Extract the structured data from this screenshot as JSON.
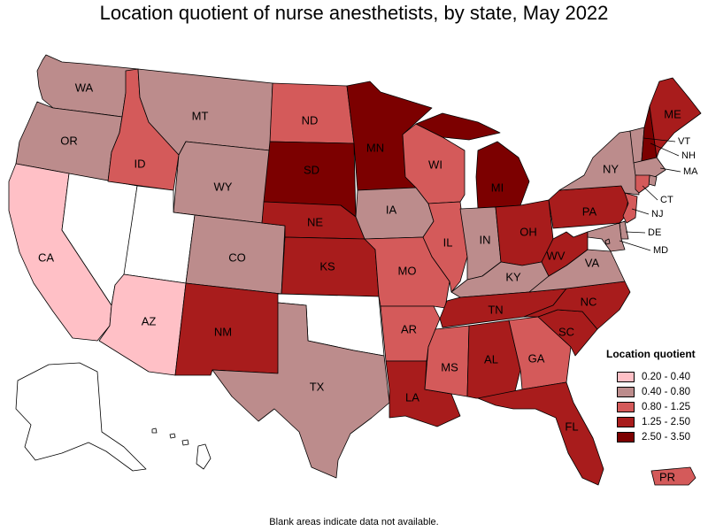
{
  "title": "Location quotient of nurse anesthetists, by state, May 2022",
  "footnote": "Blank areas indicate data not available.",
  "legend": {
    "title": "Location quotient",
    "bins": [
      {
        "label": "0.20 - 0.40",
        "color": "#ffc0c6"
      },
      {
        "label": "0.40 - 0.80",
        "color": "#bc8c8c"
      },
      {
        "label": "0.80 - 1.25",
        "color": "#d45a5a"
      },
      {
        "label": "1.25 - 2.50",
        "color": "#a81c1c"
      },
      {
        "label": "2.50 - 3.50",
        "color": "#7c0000"
      }
    ]
  },
  "no_data_color": "#ffffff",
  "states": {
    "WA": 1,
    "OR": 1,
    "CA": 0,
    "NV": null,
    "ID": 2,
    "MT": 1,
    "WY": 1,
    "UT": null,
    "AZ": 0,
    "CO": 1,
    "NM": 3,
    "ND": 2,
    "SD": 4,
    "NE": 3,
    "KS": 3,
    "OK": null,
    "TX": 1,
    "MN": 4,
    "IA": 1,
    "MO": 2,
    "AR": 2,
    "LA": 3,
    "WI": 2,
    "IL": 2,
    "MI": 4,
    "IN": 1,
    "OH": 3,
    "KY": 1,
    "TN": 3,
    "MS": 2,
    "AL": 3,
    "GA": 2,
    "FL": 3,
    "SC": 3,
    "NC": 3,
    "VA": 1,
    "WV": 3,
    "PA": 3,
    "NY": 1,
    "VT": 1,
    "NH": 4,
    "ME": 3,
    "MA": 1,
    "CT": 2,
    "RI": 1,
    "NJ": 2,
    "DE": 1,
    "MD": 1,
    "DC": 1,
    "AK": null,
    "HI": null,
    "PR": 2
  },
  "labels": [
    "WA",
    "OR",
    "CA",
    "ID",
    "MT",
    "WY",
    "AZ",
    "CO",
    "NM",
    "ND",
    "SD",
    "NE",
    "KS",
    "TX",
    "MN",
    "IA",
    "MO",
    "AR",
    "LA",
    "WI",
    "IL",
    "MI",
    "IN",
    "OH",
    "KY",
    "TN",
    "MS",
    "AL",
    "GA",
    "FL",
    "SC",
    "NC",
    "VA",
    "WV",
    "PA",
    "NY",
    "ME",
    "PR",
    "VT",
    "NH",
    "MA",
    "CT",
    "NJ",
    "DE",
    "MD"
  ]
}
